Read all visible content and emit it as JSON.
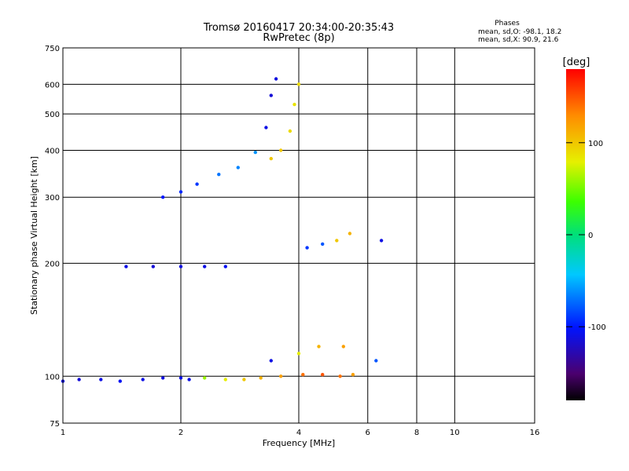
{
  "chart_data": {
    "type": "scatter",
    "title": "Tromsø 20160417 20:34:00-20:35:43",
    "subtitle": "RwPretec (8p)",
    "xlabel": "Frequency [MHz]",
    "ylabel": "Stationary phase Virtual Height [km]",
    "x_scale": "log",
    "y_scale": "log",
    "xlim": [
      1,
      16
    ],
    "ylim": [
      75,
      750
    ],
    "x_ticks": [
      "1",
      "2",
      "4",
      "6",
      "8",
      "10",
      "16"
    ],
    "x_grid": [
      2,
      4,
      6,
      8,
      10
    ],
    "y_ticks": [
      "75",
      "100",
      "200",
      "300",
      "400",
      "500",
      "600",
      "750"
    ],
    "y_grid": [
      100,
      200,
      300,
      400,
      500,
      600
    ],
    "grid": true,
    "stats": {
      "heading": "Phases",
      "o_mode": "mean, sd,O: -98.1, 18.2",
      "x_mode": "mean, sd,X:  90.9, 21.6"
    },
    "colorbar": {
      "label": "[deg]",
      "range": [
        -180,
        180
      ],
      "ticks": [
        "100",
        "0",
        "-100"
      ],
      "tick_values": [
        100,
        0,
        -100
      ]
    },
    "series": [
      {
        "values": [
          [
            1.0,
            97,
            -110
          ],
          [
            1.1,
            98,
            -115
          ],
          [
            1.25,
            98,
            -110
          ],
          [
            1.4,
            97,
            -105
          ],
          [
            1.6,
            98,
            -110
          ],
          [
            1.8,
            99,
            -112
          ],
          [
            2.0,
            99,
            -108
          ],
          [
            2.1,
            98,
            -110
          ]
        ]
      },
      {
        "values": [
          [
            2.3,
            99,
            60
          ],
          [
            2.6,
            98,
            80
          ],
          [
            2.9,
            98,
            100
          ],
          [
            3.2,
            99,
            110
          ],
          [
            3.6,
            100,
            120
          ],
          [
            4.1,
            101,
            140
          ],
          [
            4.6,
            101,
            150
          ],
          [
            5.1,
            100,
            140
          ],
          [
            5.5,
            101,
            120
          ]
        ]
      },
      {
        "values": [
          [
            1.8,
            300,
            -100
          ],
          [
            2.0,
            310,
            -95
          ],
          [
            2.2,
            325,
            -90
          ],
          [
            2.5,
            345,
            -70
          ],
          [
            2.8,
            360,
            -65
          ],
          [
            3.1,
            395,
            -60
          ],
          [
            3.3,
            460,
            -110
          ],
          [
            3.4,
            560,
            -115
          ],
          [
            3.5,
            620,
            -112
          ]
        ]
      },
      {
        "values": [
          [
            3.4,
            380,
            100
          ],
          [
            3.6,
            400,
            100
          ],
          [
            3.8,
            450,
            90
          ],
          [
            3.9,
            530,
            85
          ],
          [
            4.0,
            600,
            90
          ]
        ]
      },
      {
        "values": [
          [
            4.2,
            220,
            -90
          ],
          [
            4.6,
            225,
            -80
          ],
          [
            5.0,
            230,
            100
          ],
          [
            5.4,
            240,
            110
          ],
          [
            6.5,
            230,
            -110
          ]
        ]
      },
      {
        "values": [
          [
            1.45,
            196,
            -110
          ],
          [
            1.7,
            196,
            -115
          ],
          [
            2.0,
            196,
            -112
          ],
          [
            2.3,
            196,
            -110
          ],
          [
            2.6,
            196,
            -105
          ]
        ]
      },
      {
        "values": [
          [
            3.4,
            110,
            -110
          ],
          [
            4.0,
            115,
            80
          ],
          [
            4.5,
            120,
            110
          ],
          [
            5.2,
            120,
            120
          ],
          [
            6.3,
            110,
            -80
          ]
        ]
      }
    ]
  }
}
